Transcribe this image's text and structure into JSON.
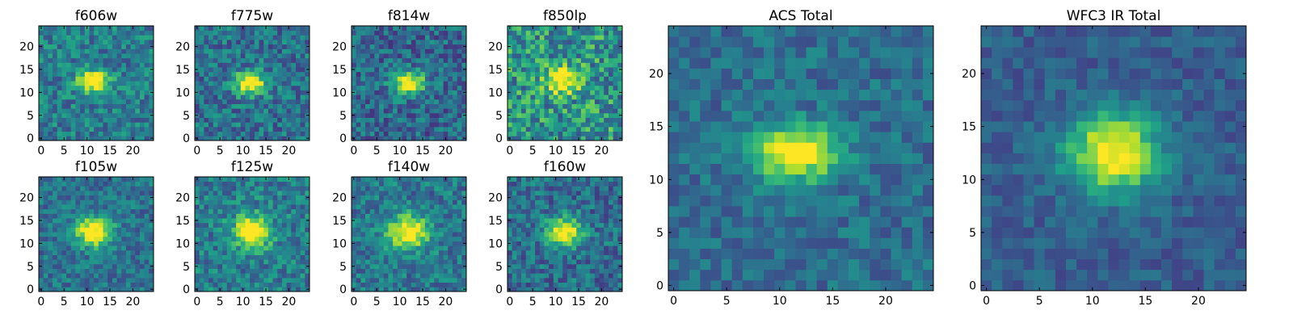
{
  "figure": {
    "colormap": "viridis",
    "colormap_stops": [
      "#440154",
      "#482878",
      "#3e4989",
      "#31688e",
      "#26828e",
      "#1f9e89",
      "#35b779",
      "#6ece58",
      "#b5de2b",
      "#fde725"
    ]
  },
  "chart_data": [
    {
      "type": "heatmap",
      "title": "f606w",
      "grid_size": 25,
      "xlim": [
        0,
        24
      ],
      "ylim": [
        0,
        24
      ],
      "xticks": [
        0,
        5,
        10,
        15,
        20
      ],
      "yticks": [
        0,
        5,
        10,
        15,
        20
      ],
      "source": {
        "cx": 11.5,
        "cy": 12.5,
        "sx": 2.4,
        "sy": 1.6,
        "peak": 1.0,
        "noise": 0.38,
        "bg": 0.42,
        "seed": 11
      }
    },
    {
      "type": "heatmap",
      "title": "f775w",
      "grid_size": 25,
      "xlim": [
        0,
        24
      ],
      "ylim": [
        0,
        24
      ],
      "xticks": [
        0,
        5,
        10,
        15,
        20
      ],
      "yticks": [
        0,
        5,
        10,
        15,
        20
      ],
      "source": {
        "cx": 11.5,
        "cy": 12.0,
        "sx": 2.4,
        "sy": 1.7,
        "peak": 1.0,
        "noise": 0.4,
        "bg": 0.38,
        "seed": 23
      }
    },
    {
      "type": "heatmap",
      "title": "f814w",
      "grid_size": 25,
      "xlim": [
        0,
        24
      ],
      "ylim": [
        0,
        24
      ],
      "xticks": [
        0,
        5,
        10,
        15,
        20
      ],
      "yticks": [
        0,
        5,
        10,
        15,
        20
      ],
      "source": {
        "cx": 12.0,
        "cy": 12.0,
        "sx": 2.4,
        "sy": 1.7,
        "peak": 1.0,
        "noise": 0.4,
        "bg": 0.34,
        "seed": 37
      }
    },
    {
      "type": "heatmap",
      "title": "f850lp",
      "grid_size": 25,
      "xlim": [
        0,
        24
      ],
      "ylim": [
        0,
        24
      ],
      "xticks": [
        0,
        5,
        10,
        15,
        20
      ],
      "yticks": [
        0,
        5,
        10,
        15,
        20
      ],
      "source": {
        "cx": 11.5,
        "cy": 12.5,
        "sx": 2.6,
        "sy": 2.0,
        "peak": 0.8,
        "noise": 0.55,
        "bg": 0.52,
        "seed": 53
      }
    },
    {
      "type": "heatmap",
      "title": "f105w",
      "grid_size": 25,
      "xlim": [
        0,
        24
      ],
      "ylim": [
        0,
        24
      ],
      "xticks": [
        0,
        5,
        10,
        15,
        20
      ],
      "yticks": [
        0,
        5,
        10,
        15,
        20
      ],
      "source": {
        "cx": 11.5,
        "cy": 12.5,
        "sx": 2.8,
        "sy": 2.2,
        "peak": 1.0,
        "noise": 0.32,
        "bg": 0.38,
        "seed": 71
      }
    },
    {
      "type": "heatmap",
      "title": "f125w",
      "grid_size": 25,
      "xlim": [
        0,
        24
      ],
      "ylim": [
        0,
        24
      ],
      "xticks": [
        0,
        5,
        10,
        15,
        20
      ],
      "yticks": [
        0,
        5,
        10,
        15,
        20
      ],
      "source": {
        "cx": 12.0,
        "cy": 12.5,
        "sx": 2.8,
        "sy": 2.4,
        "peak": 1.0,
        "noise": 0.38,
        "bg": 0.42,
        "seed": 89
      }
    },
    {
      "type": "heatmap",
      "title": "f140w",
      "grid_size": 25,
      "xlim": [
        0,
        24
      ],
      "ylim": [
        0,
        24
      ],
      "xticks": [
        0,
        5,
        10,
        15,
        20
      ],
      "yticks": [
        0,
        5,
        10,
        15,
        20
      ],
      "source": {
        "cx": 12.0,
        "cy": 12.5,
        "sx": 3.0,
        "sy": 2.4,
        "peak": 1.0,
        "noise": 0.36,
        "bg": 0.4,
        "seed": 101
      }
    },
    {
      "type": "heatmap",
      "title": "f160w",
      "grid_size": 25,
      "xlim": [
        0,
        24
      ],
      "ylim": [
        0,
        24
      ],
      "xticks": [
        0,
        5,
        10,
        15,
        20
      ],
      "yticks": [
        0,
        5,
        10,
        15,
        20
      ],
      "source": {
        "cx": 12.0,
        "cy": 12.5,
        "sx": 2.6,
        "sy": 2.2,
        "peak": 1.0,
        "noise": 0.38,
        "bg": 0.36,
        "seed": 131
      }
    },
    {
      "type": "heatmap",
      "title": "ACS Total",
      "grid_size": 25,
      "xlim": [
        0,
        24
      ],
      "ylim": [
        0,
        24
      ],
      "xticks": [
        0,
        5,
        10,
        15,
        20
      ],
      "yticks": [
        0,
        5,
        10,
        15,
        20
      ],
      "source": {
        "cx": 11.5,
        "cy": 12.5,
        "sx": 2.7,
        "sy": 1.8,
        "peak": 1.0,
        "noise": 0.26,
        "bg": 0.36,
        "seed": 149
      }
    },
    {
      "type": "heatmap",
      "title": "WFC3 IR Total",
      "grid_size": 25,
      "xlim": [
        0,
        24
      ],
      "ylim": [
        0,
        24
      ],
      "xticks": [
        0,
        5,
        10,
        15,
        20
      ],
      "yticks": [
        0,
        5,
        10,
        15,
        20
      ],
      "source": {
        "cx": 12.0,
        "cy": 12.5,
        "sx": 3.0,
        "sy": 2.6,
        "peak": 1.0,
        "noise": 0.2,
        "bg": 0.3,
        "seed": 173
      }
    }
  ]
}
